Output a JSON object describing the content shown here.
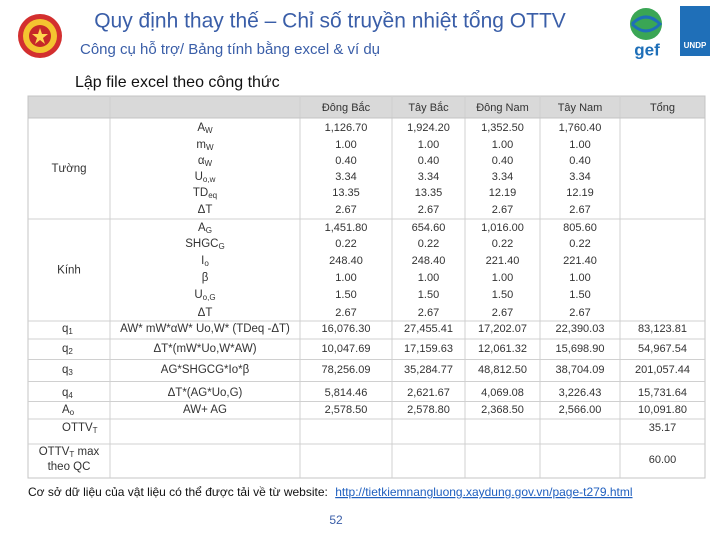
{
  "header": {
    "title": "Quy định thay thế – Chỉ số truyền nhiệt tổng OTTV",
    "subtitle": "Công cụ hỗ trợ/ Bảng tính bằng excel & ví dụ"
  },
  "logos": {
    "gef": "gef",
    "undp": "UNDP"
  },
  "section": "Lập file excel theo công thức",
  "table": {
    "columns": [
      "Đông Bắc",
      "Tây Bắc",
      "Đông Nam",
      "Tây Nam",
      "Tổng"
    ],
    "sections": [
      {
        "label": {
          "main": "Tường"
        },
        "rows": [
          {
            "var": {
              "main": "A",
              "sub": "W"
            },
            "values": [
              "1,126.70",
              "1,924.20",
              "1,352.50",
              "1,760.40"
            ]
          },
          {
            "var": {
              "main": "m",
              "sub": "W"
            },
            "values": [
              "1.00",
              "1.00",
              "1.00",
              "1.00"
            ]
          },
          {
            "var": {
              "main": "α",
              "sub": "W"
            },
            "values": [
              "0.40",
              "0.40",
              "0.40",
              "0.40"
            ]
          },
          {
            "var": {
              "main": "U",
              "sub": "o,w"
            },
            "values": [
              "3.34",
              "3.34",
              "3.34",
              "3.34"
            ]
          },
          {
            "var": {
              "main": "TD",
              "sub": "eq"
            },
            "values": [
              "13.35",
              "13.35",
              "12.19",
              "12.19"
            ]
          },
          {
            "var": {
              "main": "ΔT"
            },
            "values": [
              "2.67",
              "2.67",
              "2.67",
              "2.67"
            ]
          }
        ]
      },
      {
        "label": {
          "main": "Kính"
        },
        "rows": [
          {
            "var": {
              "main": "A",
              "sub": "G"
            },
            "values": [
              "1,451.80",
              "654.60",
              "1,016.00",
              "805.60"
            ]
          },
          {
            "var": {
              "main": "SHGC",
              "sub": "G"
            },
            "values": [
              "0.22",
              "0.22",
              "0.22",
              "0.22"
            ]
          },
          {
            "var": {
              "main": "I",
              "sub": "o"
            },
            "values": [
              "248.40",
              "248.40",
              "221.40",
              "221.40"
            ]
          },
          {
            "var": {
              "main": "β"
            },
            "values": [
              "1.00",
              "1.00",
              "1.00",
              "1.00"
            ]
          },
          {
            "var": {
              "main": "U",
              "sub": "o,G"
            },
            "values": [
              "1.50",
              "1.50",
              "1.50",
              "1.50"
            ]
          },
          {
            "var": {
              "main": "ΔT"
            },
            "values": [
              "2.67",
              "2.67",
              "2.67",
              "2.67"
            ]
          }
        ]
      },
      {
        "label": {
          "main": "q",
          "sub": "1"
        },
        "rows": [
          {
            "var": {
              "main": "AW* mW*αW* Uo,W* (TDeq -ΔT)"
            },
            "values": [
              "16,076.30",
              "27,455.41",
              "17,202.07",
              "22,390.03"
            ],
            "total": "83,123.81"
          }
        ]
      },
      {
        "label": {
          "main": "q",
          "sub": "2"
        },
        "rows": [
          {
            "var": {
              "main": "ΔT*(mW*Uo,W*AW)"
            },
            "values": [
              "10,047.69",
              "17,159.63",
              "12,061.32",
              "15,698.90"
            ],
            "total": "54,967.54"
          }
        ]
      },
      {
        "label": {
          "main": "q",
          "sub": "3"
        },
        "rows": [
          {
            "var": {
              "main": "AG*SHGCG*Io*β"
            },
            "values": [
              "78,256.09",
              "35,284.77",
              "48,812.50",
              "38,704.09"
            ],
            "total": "201,057.44"
          }
        ]
      },
      {
        "label": {
          "main": "q",
          "sub": "4"
        },
        "rows": [
          {
            "var": {
              "main": "ΔT*(AG*Uo,G)"
            },
            "values": [
              "5,814.46",
              "2,621.67",
              "4,069.08",
              "3,226.43"
            ],
            "total": "15,731.64"
          }
        ]
      },
      {
        "label": {
          "main": "A",
          "sub": "o"
        },
        "rows": [
          {
            "var": {
              "main": "AW+ AG"
            },
            "values": [
              "2,578.50",
              "2,578.80",
              "2,368.50",
              "2,566.00"
            ],
            "total": "10,091.80"
          }
        ]
      },
      {
        "label": {
          "main": "OTTV",
          "sub": "T"
        },
        "rows": [
          {
            "total": "35.17"
          }
        ]
      },
      {
        "label": {
          "main": "OTTV",
          "sub": "T",
          "after": " max",
          "line2": "theo QC"
        },
        "rows": [
          {
            "total": "60.00"
          }
        ]
      }
    ]
  },
  "footer": {
    "note": "Cơ sở dữ liệu của vật liệu có thể được tải về từ website:",
    "link": "http://tietkiemnangluong.xaydung.gov.vn/page-t279.html"
  },
  "page_number": "52"
}
